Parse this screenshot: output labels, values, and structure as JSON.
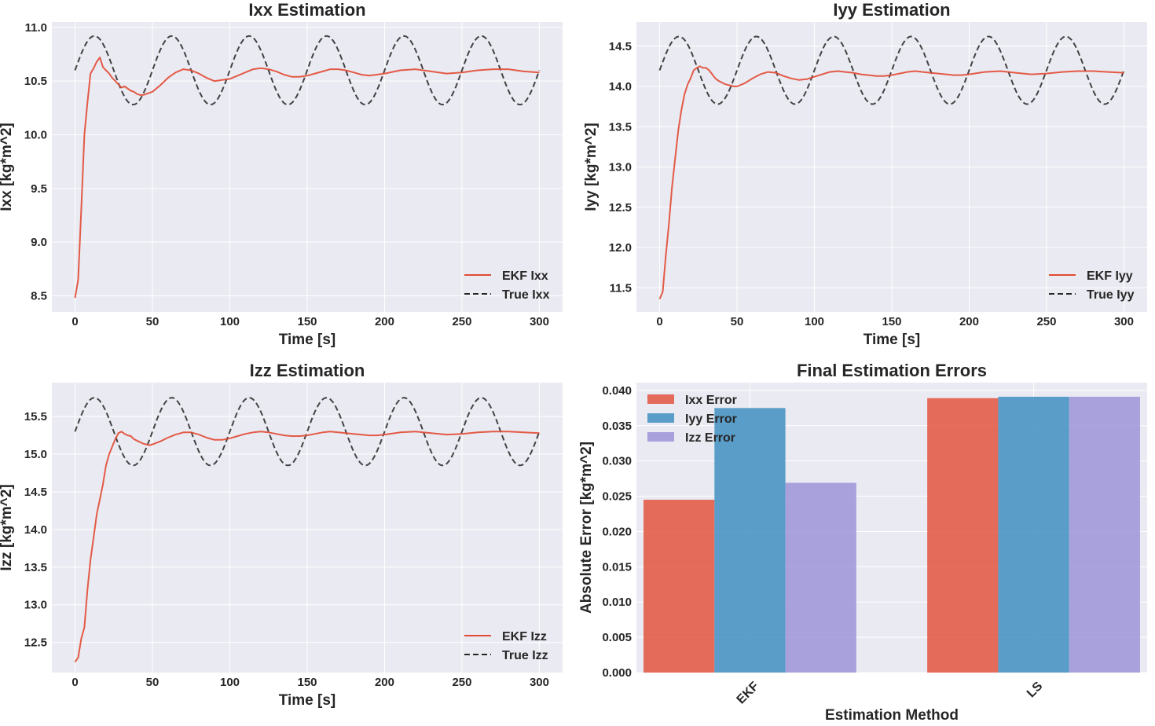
{
  "chart_data": [
    {
      "type": "line",
      "title": "Ixx Estimation",
      "xlabel": "Time [s]",
      "ylabel": "Ixx [kg*m^2]",
      "xlim": [
        -15,
        315
      ],
      "ylim": [
        8.35,
        11.05
      ],
      "xticks": [
        0,
        50,
        100,
        150,
        200,
        250,
        300
      ],
      "yticks": [
        8.5,
        9.0,
        9.5,
        10.0,
        10.5,
        11.0
      ],
      "ytick_labels": [
        "8.5",
        "9.0",
        "9.5",
        "10.0",
        "10.5",
        "11.0"
      ],
      "legend_position": "lower-right",
      "series": [
        {
          "name": "EKF Ixx",
          "color": "#e24a33",
          "style": "solid",
          "x": [
            0,
            2,
            4,
            6,
            8,
            10,
            12,
            14,
            16,
            18,
            20,
            22,
            24,
            26,
            28,
            30,
            32,
            34,
            36,
            38,
            40,
            42,
            44,
            46,
            48,
            50,
            55,
            60,
            65,
            70,
            75,
            80,
            85,
            90,
            95,
            100,
            105,
            110,
            115,
            120,
            125,
            130,
            135,
            140,
            145,
            150,
            155,
            160,
            165,
            170,
            175,
            180,
            185,
            190,
            195,
            200,
            210,
            220,
            230,
            240,
            250,
            260,
            270,
            280,
            290,
            300
          ],
          "y": [
            8.48,
            8.65,
            9.3,
            10.0,
            10.3,
            10.57,
            10.62,
            10.68,
            10.72,
            10.63,
            10.6,
            10.57,
            10.53,
            10.5,
            10.47,
            10.44,
            10.45,
            10.43,
            10.41,
            10.4,
            10.38,
            10.37,
            10.37,
            10.38,
            10.39,
            10.4,
            10.46,
            10.53,
            10.58,
            10.61,
            10.6,
            10.57,
            10.53,
            10.5,
            10.51,
            10.52,
            10.55,
            10.58,
            10.61,
            10.62,
            10.61,
            10.59,
            10.56,
            10.54,
            10.54,
            10.55,
            10.57,
            10.59,
            10.61,
            10.61,
            10.6,
            10.58,
            10.56,
            10.55,
            10.56,
            10.57,
            10.6,
            10.61,
            10.59,
            10.57,
            10.58,
            10.6,
            10.61,
            10.61,
            10.59,
            10.58
          ]
        },
        {
          "name": "True Ixx",
          "color": "#262626",
          "style": "dashed",
          "func": {
            "base": 10.6,
            "amplitude": 0.32,
            "period": 50
          }
        }
      ]
    },
    {
      "type": "line",
      "title": "Iyy Estimation",
      "xlabel": "Time [s]",
      "ylabel": "Iyy [kg*m^2]",
      "xlim": [
        -15,
        315
      ],
      "ylim": [
        11.2,
        14.8
      ],
      "xticks": [
        0,
        50,
        100,
        150,
        200,
        250,
        300
      ],
      "yticks": [
        11.5,
        12.0,
        12.5,
        13.0,
        13.5,
        14.0,
        14.5
      ],
      "ytick_labels": [
        "11.5",
        "12.0",
        "12.5",
        "13.0",
        "13.5",
        "14.0",
        "14.5"
      ],
      "legend_position": "lower-right",
      "series": [
        {
          "name": "EKF Iyy",
          "color": "#e24a33",
          "style": "solid",
          "x": [
            0,
            2,
            4,
            6,
            8,
            10,
            12,
            14,
            16,
            18,
            20,
            22,
            24,
            26,
            28,
            30,
            32,
            34,
            36,
            38,
            40,
            42,
            44,
            46,
            48,
            50,
            55,
            60,
            65,
            70,
            75,
            80,
            85,
            90,
            95,
            100,
            105,
            110,
            115,
            120,
            125,
            130,
            135,
            140,
            145,
            150,
            155,
            160,
            165,
            170,
            175,
            180,
            185,
            190,
            195,
            200,
            210,
            220,
            230,
            240,
            250,
            260,
            270,
            280,
            290,
            300
          ],
          "y": [
            11.36,
            11.45,
            11.9,
            12.3,
            12.75,
            13.1,
            13.45,
            13.7,
            13.9,
            14.02,
            14.1,
            14.2,
            14.23,
            14.25,
            14.23,
            14.23,
            14.2,
            14.15,
            14.1,
            14.07,
            14.05,
            14.03,
            14.02,
            14.01,
            14.0,
            14.0,
            14.04,
            14.1,
            14.15,
            14.18,
            14.17,
            14.13,
            14.1,
            14.08,
            14.09,
            14.12,
            14.15,
            14.18,
            14.19,
            14.18,
            14.17,
            14.15,
            14.14,
            14.13,
            14.13,
            14.14,
            14.16,
            14.18,
            14.19,
            14.18,
            14.17,
            14.16,
            14.15,
            14.14,
            14.14,
            14.15,
            14.18,
            14.19,
            14.17,
            14.15,
            14.16,
            14.18,
            14.19,
            14.19,
            14.18,
            14.17
          ]
        },
        {
          "name": "True Iyy",
          "color": "#262626",
          "style": "dashed",
          "func": {
            "base": 14.2,
            "amplitude": 0.42,
            "period": 50
          }
        }
      ]
    },
    {
      "type": "line",
      "title": "Izz Estimation",
      "xlabel": "Time [s]",
      "ylabel": "Izz [kg*m^2]",
      "xlim": [
        -15,
        315
      ],
      "ylim": [
        12.1,
        15.95
      ],
      "xticks": [
        0,
        50,
        100,
        150,
        200,
        250,
        300
      ],
      "yticks": [
        12.5,
        13.0,
        13.5,
        14.0,
        14.5,
        15.0,
        15.5
      ],
      "ytick_labels": [
        "12.5",
        "13.0",
        "13.5",
        "14.0",
        "14.5",
        "15.0",
        "15.5"
      ],
      "legend_position": "lower-right",
      "series": [
        {
          "name": "EKF Izz",
          "color": "#e24a33",
          "style": "solid",
          "x": [
            0,
            2,
            4,
            6,
            8,
            10,
            12,
            14,
            16,
            18,
            20,
            22,
            24,
            26,
            28,
            30,
            32,
            34,
            36,
            38,
            40,
            42,
            44,
            46,
            48,
            50,
            55,
            60,
            65,
            70,
            75,
            80,
            85,
            90,
            95,
            100,
            105,
            110,
            115,
            120,
            125,
            130,
            135,
            140,
            145,
            150,
            155,
            160,
            165,
            170,
            175,
            180,
            185,
            190,
            195,
            200,
            210,
            220,
            230,
            240,
            250,
            260,
            270,
            280,
            290,
            300
          ],
          "y": [
            12.24,
            12.3,
            12.55,
            12.7,
            13.2,
            13.6,
            13.9,
            14.2,
            14.4,
            14.6,
            14.85,
            15.0,
            15.1,
            15.2,
            15.28,
            15.3,
            15.27,
            15.25,
            15.24,
            15.2,
            15.18,
            15.16,
            15.14,
            15.13,
            15.12,
            15.13,
            15.17,
            15.22,
            15.26,
            15.29,
            15.29,
            15.26,
            15.22,
            15.19,
            15.19,
            15.21,
            15.24,
            15.27,
            15.29,
            15.3,
            15.29,
            15.27,
            15.25,
            15.24,
            15.24,
            15.25,
            15.27,
            15.29,
            15.3,
            15.29,
            15.28,
            15.27,
            15.26,
            15.25,
            15.25,
            15.26,
            15.29,
            15.3,
            15.28,
            15.26,
            15.27,
            15.29,
            15.3,
            15.3,
            15.29,
            15.28
          ]
        },
        {
          "name": "True Izz",
          "color": "#262626",
          "style": "dashed",
          "func": {
            "base": 15.3,
            "amplitude": 0.45,
            "period": 50
          }
        }
      ]
    },
    {
      "type": "bar",
      "title": "Final Estimation Errors",
      "xlabel": "Estimation Method",
      "ylabel": "Absolute Error [kg*m^2]",
      "categories": [
        "EKF",
        "LS"
      ],
      "ylim": [
        0,
        0.0411
      ],
      "yticks": [
        0,
        0.005,
        0.01,
        0.015,
        0.02,
        0.025,
        0.03,
        0.035,
        0.04
      ],
      "ytick_labels": [
        "0.000",
        "0.005",
        "0.010",
        "0.015",
        "0.020",
        "0.025",
        "0.030",
        "0.035",
        "0.040"
      ],
      "legend_position": "top-left",
      "series": [
        {
          "name": "Ixx Error",
          "color": "#e24a33",
          "values": [
            0.0245,
            0.0389
          ]
        },
        {
          "name": "Iyy Error",
          "color": "#348abd",
          "values": [
            0.0375,
            0.0391
          ]
        },
        {
          "name": "Izz Error",
          "color": "#988ed5",
          "values": [
            0.0269,
            0.0391
          ]
        }
      ]
    }
  ]
}
